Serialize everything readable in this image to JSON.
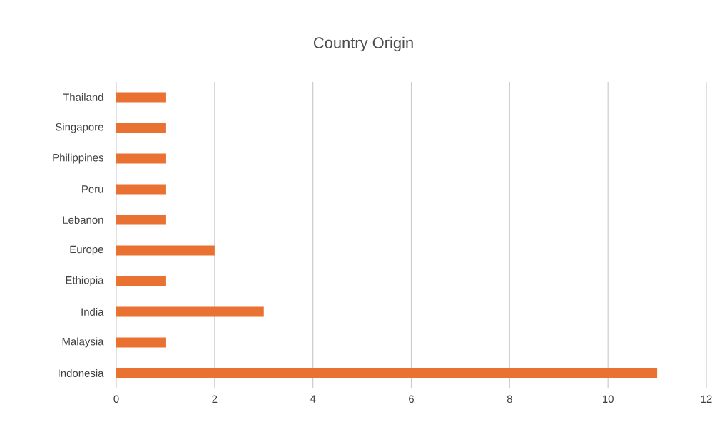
{
  "chart_data": {
    "type": "bar",
    "orientation": "horizontal",
    "title": "Country Origin",
    "categories": [
      "Thailand",
      "Singapore",
      "Philippines",
      "Peru",
      "Lebanon",
      "Europe",
      "Ethiopia",
      "India",
      "Malaysia",
      "Indonesia"
    ],
    "values": [
      1,
      1,
      1,
      1,
      1,
      2,
      1,
      3,
      1,
      11
    ],
    "color": "#e97132",
    "xlim": [
      0,
      12
    ],
    "xticks": [
      0,
      2,
      4,
      6,
      8,
      10,
      12
    ],
    "grid": "x"
  }
}
